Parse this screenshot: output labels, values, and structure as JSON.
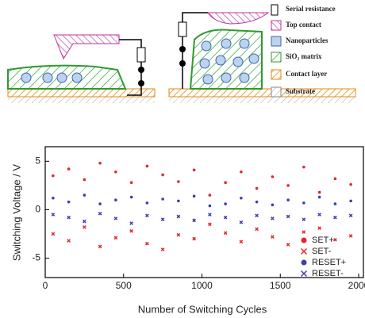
{
  "schematic": {
    "legend": [
      "Serial resistance",
      "Top contact",
      "Nanoparticles",
      "SiO₂ matrix",
      "Contact layer",
      "Substrate"
    ]
  },
  "chart_data": {
    "type": "scatter",
    "xlabel": "Number of Switching Cycles",
    "ylabel": "Switching Voltage / V",
    "xlim": [
      0,
      2000
    ],
    "xticks": [
      0,
      500,
      1000,
      1500,
      2000
    ],
    "ylim": [
      -7,
      6.5
    ],
    "yticks": [
      -5,
      0,
      5
    ],
    "x": [
      50,
      150,
      250,
      350,
      450,
      550,
      650,
      750,
      850,
      950,
      1050,
      1150,
      1250,
      1350,
      1450,
      1550,
      1650,
      1750,
      1850,
      1950
    ],
    "legend": "lower right",
    "series": [
      {
        "name": "SET+",
        "color": "#e8252b",
        "marker": "o",
        "values": [
          3.5,
          4.2,
          3.1,
          4.8,
          3.9,
          2.8,
          4.5,
          3.6,
          2.9,
          4.1,
          1.5,
          2.8,
          3.9,
          2.2,
          3.4,
          2.5,
          4.4,
          1.8,
          3.2,
          2.6
        ]
      },
      {
        "name": "SET-",
        "color": "#e8252b",
        "marker": "x",
        "values": [
          -2.5,
          -3.2,
          -1.8,
          -3.8,
          -2.9,
          -2.2,
          -3.5,
          -4.1,
          -2.6,
          -3.0,
          -1.5,
          -2.4,
          -3.3,
          -2.0,
          -2.8,
          -3.6,
          -2.3,
          -1.9,
          -3.1,
          -2.7
        ]
      },
      {
        "name": "RESET+",
        "color": "#3b3fb0",
        "marker": "o",
        "values": [
          1.2,
          0.8,
          1.5,
          0.6,
          1.0,
          1.3,
          0.7,
          1.1,
          0.9,
          1.4,
          0.4,
          0.6,
          1.2,
          0.8,
          0.5,
          1.0,
          0.7,
          1.3,
          0.6,
          0.9
        ]
      },
      {
        "name": "RESET-",
        "color": "#3b3fb0",
        "marker": "x",
        "values": [
          -0.5,
          -0.8,
          -1.2,
          -0.4,
          -0.9,
          -1.4,
          -0.6,
          -1.0,
          -0.7,
          -1.1,
          -0.5,
          -0.8,
          -1.3,
          -0.6,
          -0.9,
          -0.7,
          -1.0,
          -0.5,
          -0.8,
          -0.6
        ]
      }
    ]
  }
}
